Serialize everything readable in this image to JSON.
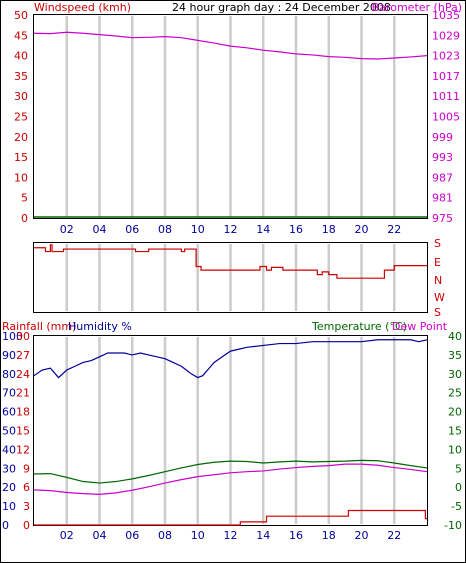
{
  "title": "24 hour graph day : 24 December 2008",
  "colors": {
    "wind": "#cc0000",
    "barometer": "#cc00cc",
    "grid": "#cccccc",
    "rain": "#cc0000",
    "humidity": "#000099",
    "temperature": "#006600",
    "dew": "#cc00cc",
    "frame": "#000000"
  },
  "x_ticks": [
    "02",
    "04",
    "06",
    "08",
    "10",
    "12",
    "14",
    "16",
    "18",
    "20",
    "22"
  ],
  "dir_labels": [
    "S",
    "E",
    "N",
    "W",
    "S"
  ],
  "chart_data": [
    {
      "type": "line",
      "title": "24 hour graph day : 24 December 2008",
      "xlabel": "",
      "ylabel": "Windspeed (kmh)",
      "y2label": "Barometer (hPa)",
      "x_range": [
        0,
        24
      ],
      "ylim": [
        0,
        50
      ],
      "y2lim": [
        975,
        1035
      ],
      "y_ticks": [
        "0",
        "5",
        "10",
        "15",
        "20",
        "25",
        "30",
        "35",
        "40",
        "45",
        "50"
      ],
      "y2_ticks": [
        "975",
        "981",
        "987",
        "993",
        "999",
        "1005",
        "1011",
        "1017",
        "1023",
        "1029",
        "1035"
      ],
      "grid": true,
      "series": [
        {
          "name": "Windspeed (kmh)",
          "axis": "left",
          "x": [
            0,
            24
          ],
          "y": [
            0,
            0
          ]
        },
        {
          "name": "Barometer (hPa)",
          "axis": "right",
          "x": [
            0,
            1,
            2,
            3,
            4,
            5,
            6,
            7,
            8,
            9,
            10,
            11,
            12,
            13,
            14,
            15,
            16,
            17,
            18,
            19,
            20,
            21,
            22,
            23,
            24
          ],
          "y": [
            1029.6,
            1029.5,
            1029.9,
            1029.6,
            1029.2,
            1028.8,
            1028.3,
            1028.4,
            1028.6,
            1028.3,
            1027.5,
            1026.7,
            1025.8,
            1025.3,
            1024.6,
            1024.1,
            1023.5,
            1023.2,
            1022.7,
            1022.5,
            1022.1,
            1022.0,
            1022.3,
            1022.6,
            1023.0
          ]
        }
      ]
    },
    {
      "type": "line",
      "title": "",
      "ylabel": "",
      "x_range": [
        0,
        24
      ],
      "y_categories": [
        "S",
        "E",
        "N",
        "W",
        "S"
      ],
      "series": [
        {
          "name": "Wind direction",
          "x": [
            0,
            0.7,
            0.7,
            1.0,
            1.0,
            1.1,
            1.1,
            1.8,
            1.8,
            6.2,
            6.2,
            7.0,
            7.0,
            9.0,
            9.0,
            9.2,
            9.2,
            9.9,
            9.9,
            10.2,
            10.2,
            13.8,
            13.8,
            14.2,
            14.2,
            14.5,
            14.5,
            15.2,
            15.2,
            17.3,
            17.3,
            17.6,
            17.6,
            18.0,
            18.0,
            18.5,
            18.5,
            20.0,
            20.0,
            20.8,
            20.8,
            21.4,
            21.4,
            22.0,
            22.0,
            24
          ],
          "y": [
            0.25,
            0.25,
            0.45,
            0.45,
            0.1,
            0.1,
            0.45,
            0.45,
            0.32,
            0.32,
            0.45,
            0.45,
            0.32,
            0.32,
            0.45,
            0.45,
            0.32,
            0.32,
            1.25,
            1.25,
            1.45,
            1.45,
            1.25,
            1.25,
            1.45,
            1.45,
            1.3,
            1.3,
            1.45,
            1.45,
            1.7,
            1.7,
            1.55,
            1.55,
            1.7,
            1.7,
            1.9,
            1.9,
            1.9,
            1.9,
            1.9,
            1.9,
            1.45,
            1.45,
            1.2,
            1.2
          ]
        }
      ]
    },
    {
      "type": "line",
      "title": "",
      "ylabel": "Rainfall (mm)",
      "ylabel2": "Humidity %",
      "y2label": "Temperature (°C)",
      "y2label2": "Dew Point",
      "x_range": [
        0,
        24
      ],
      "ylim": [
        0,
        100
      ],
      "y2lim": [
        -10,
        40
      ],
      "humidity_ticks": [
        "0",
        "10",
        "20",
        "30",
        "40",
        "50",
        "60",
        "70",
        "80",
        "90",
        "100"
      ],
      "rain_ticks": [
        "0",
        "3",
        "6",
        "9",
        "12",
        "15",
        "18",
        "21",
        "24",
        "27",
        "30"
      ],
      "temp_ticks": [
        "-10",
        "-5",
        "0",
        "5",
        "10",
        "15",
        "20",
        "25",
        "30",
        "35",
        "40"
      ],
      "grid": true,
      "series": [
        {
          "name": "Humidity %",
          "axis": "left_humidity",
          "x": [
            0,
            0.5,
            1,
            1.5,
            2,
            2.5,
            3,
            3.5,
            4,
            4.5,
            5,
            5.5,
            6,
            6.5,
            7,
            7.5,
            8,
            8.5,
            9,
            9.3,
            9.6,
            10,
            10.3,
            10.6,
            11,
            11.5,
            12,
            12.5,
            13,
            14,
            15,
            16,
            17,
            18,
            19,
            20,
            21,
            22,
            23,
            23.5,
            24
          ],
          "y": [
            79,
            82,
            83,
            78,
            82,
            84,
            86,
            87,
            89,
            91,
            91,
            91,
            90,
            91,
            90,
            89,
            88,
            86,
            84,
            82,
            80,
            78,
            79,
            82,
            86,
            89,
            92,
            93,
            94,
            95,
            96,
            96,
            97,
            97,
            97,
            97,
            98,
            98,
            98,
            97,
            98
          ]
        },
        {
          "name": "Rainfall (mm)",
          "axis": "left_rain",
          "x": [
            0,
            12.6,
            12.6,
            14.2,
            14.2,
            19.2,
            19.2,
            23.9,
            23.9,
            24
          ],
          "y": [
            0,
            0,
            0.5,
            0.5,
            1.4,
            1.4,
            2.3,
            2.3,
            1.0,
            1.0
          ]
        },
        {
          "name": "Temperature (°C)",
          "axis": "right",
          "x": [
            0,
            1,
            2,
            3,
            4,
            5,
            6,
            7,
            8,
            9,
            10,
            11,
            12,
            13,
            14,
            15,
            16,
            17,
            18,
            19,
            20,
            21,
            22,
            23,
            24
          ],
          "y": [
            3.5,
            3.6,
            2.6,
            1.5,
            1.1,
            1.5,
            2.2,
            3.1,
            4.1,
            5.1,
            6.0,
            6.6,
            6.9,
            6.8,
            6.4,
            6.7,
            6.9,
            6.7,
            6.8,
            6.9,
            7.1,
            7.0,
            6.4,
            5.7,
            5.1
          ]
        },
        {
          "name": "Dew Point",
          "axis": "right",
          "x": [
            0,
            1,
            2,
            3,
            4,
            5,
            6,
            7,
            8,
            9,
            10,
            11,
            12,
            13,
            14,
            15,
            16,
            17,
            18,
            19,
            20,
            21,
            22,
            23,
            24
          ],
          "y": [
            -0.7,
            -0.9,
            -1.4,
            -1.7,
            -1.9,
            -1.5,
            -0.8,
            0.1,
            1.1,
            2.0,
            2.8,
            3.3,
            3.8,
            4.1,
            4.3,
            4.8,
            5.2,
            5.5,
            5.7,
            6.1,
            6.1,
            5.8,
            5.2,
            4.7,
            4.1
          ]
        }
      ]
    }
  ]
}
